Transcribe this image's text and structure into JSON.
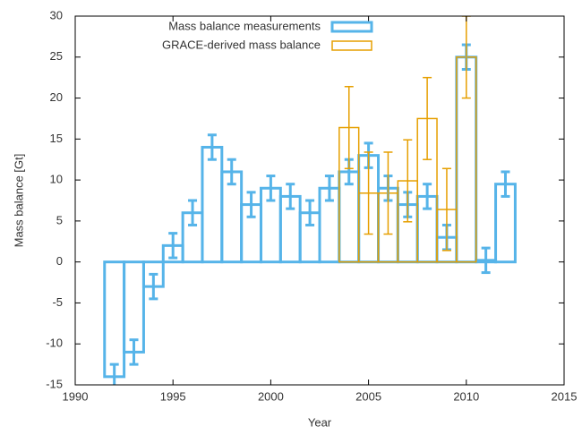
{
  "chart_data": {
    "type": "bar",
    "x_label": "Year",
    "y_label": "Mass balance [Gt]",
    "xlim": [
      1990,
      2015
    ],
    "xticks": [
      1990,
      1995,
      2000,
      2005,
      2010,
      2015
    ],
    "ylim": [
      -15,
      30
    ],
    "yticks": [
      -15,
      -10,
      -5,
      0,
      5,
      10,
      15,
      20,
      25,
      30
    ],
    "legend": "top-left",
    "series": [
      {
        "name": "Mass balance measurements",
        "color": "#56b4e9",
        "x": [
          1992,
          1993,
          1994,
          1995,
          1996,
          1997,
          1998,
          1999,
          2000,
          2001,
          2002,
          2003,
          2004,
          2005,
          2006,
          2007,
          2008,
          2009,
          2010,
          2011,
          2012
        ],
        "values": [
          -14,
          -11,
          -3,
          2,
          6,
          14,
          11,
          7,
          9,
          8,
          6,
          9,
          11,
          13,
          9,
          7,
          8,
          3,
          25,
          0.2,
          9.5
        ],
        "errors": [
          1.5,
          1.5,
          1.5,
          1.5,
          1.5,
          1.5,
          1.5,
          1.5,
          1.5,
          1.5,
          1.5,
          1.5,
          1.5,
          1.5,
          1.5,
          1.5,
          1.5,
          1.5,
          1.5,
          1.5,
          1.5
        ]
      },
      {
        "name": "GRACE-derived mass balance",
        "color": "#e69f00",
        "x": [
          2004,
          2005,
          2006,
          2007,
          2008,
          2009,
          2010
        ],
        "values": [
          16.4,
          8.4,
          8.4,
          9.9,
          17.5,
          6.4,
          25
        ],
        "errors": [
          5,
          5,
          5,
          5,
          5,
          5,
          5
        ]
      }
    ]
  }
}
